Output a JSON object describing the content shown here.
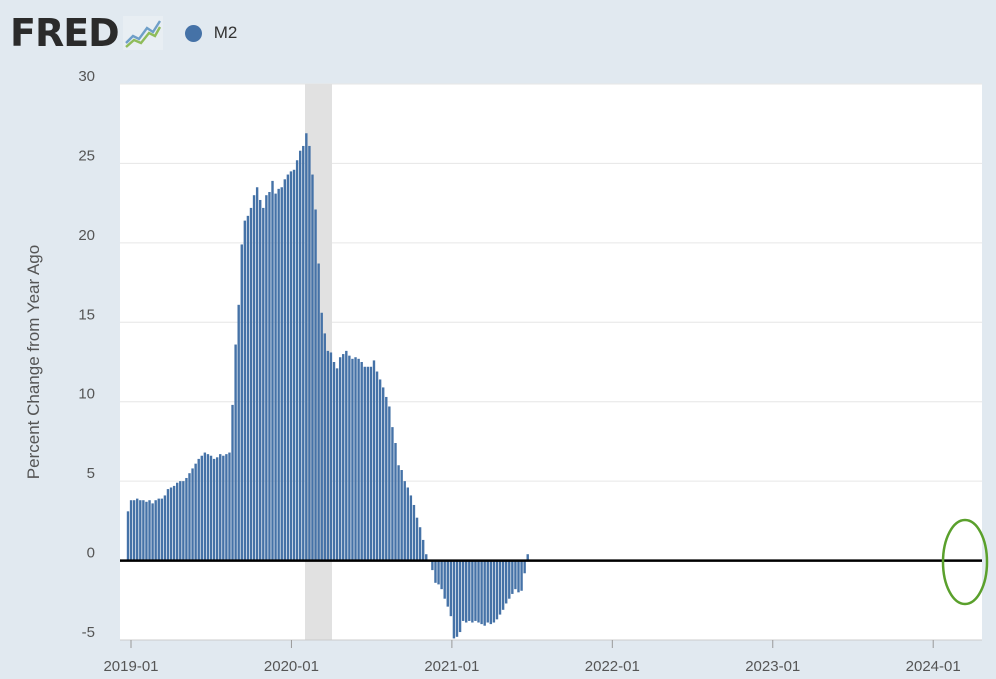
{
  "header": {
    "logo": "FRED",
    "logo_icon": "line-graph-icon"
  },
  "colors": {
    "bar": "#4572a7",
    "recession": "#e1e1e1",
    "zero_line": "#000000",
    "annotation": "#5aa02c",
    "plot_bg": "#ffffff",
    "page_bg": "#e1e9f0"
  },
  "chart_data": {
    "type": "bar",
    "ylabel": "Percent Change from Year Ago",
    "xlabel": "",
    "ylim": [
      -5,
      30
    ],
    "yticks": [
      -5,
      0,
      5,
      10,
      15,
      20,
      25,
      30
    ],
    "xticks": [
      "2019-01",
      "2020-01",
      "2021-01",
      "2022-01",
      "2023-01",
      "2024-01"
    ],
    "grid": true,
    "legend": "top-left",
    "recession": {
      "start": "2020-03",
      "end": "2020-04"
    },
    "annotation": {
      "shape": "ellipse",
      "around": "2024-02 to 2024-04"
    },
    "series": [
      {
        "name": "M2",
        "start": "2019-01",
        "frequency": "weekly",
        "values": [
          3.1,
          3.8,
          3.8,
          3.9,
          3.8,
          3.8,
          3.7,
          3.8,
          3.6,
          3.8,
          3.9,
          3.9,
          4.1,
          4.5,
          4.6,
          4.7,
          4.9,
          5.0,
          5.0,
          5.2,
          5.5,
          5.8,
          6.1,
          6.4,
          6.6,
          6.8,
          6.7,
          6.6,
          6.4,
          6.5,
          6.7,
          6.6,
          6.7,
          6.8,
          9.8,
          13.6,
          16.1,
          19.9,
          21.4,
          21.7,
          22.2,
          23.0,
          23.5,
          22.7,
          22.2,
          23.0,
          23.2,
          23.9,
          23.1,
          23.4,
          23.5,
          24.0,
          24.3,
          24.5,
          24.6,
          25.2,
          25.8,
          26.1,
          26.9,
          26.1,
          24.3,
          22.1,
          18.7,
          15.6,
          14.3,
          13.2,
          13.1,
          12.5,
          12.1,
          12.8,
          13.0,
          13.2,
          12.9,
          12.7,
          12.8,
          12.7,
          12.5,
          12.2,
          12.2,
          12.2,
          12.6,
          11.9,
          11.4,
          10.9,
          10.3,
          9.7,
          8.4,
          7.4,
          6.0,
          5.7,
          5.0,
          4.6,
          4.1,
          3.5,
          2.7,
          2.1,
          1.3,
          0.4,
          0.0,
          -0.6,
          -1.4,
          -1.5,
          -1.8,
          -2.4,
          -2.9,
          -3.5,
          -4.9,
          -4.8,
          -4.5,
          -3.8,
          -3.9,
          -3.8,
          -3.9,
          -3.8,
          -3.9,
          -4.0,
          -4.1,
          -3.9,
          -4.0,
          -3.9,
          -3.7,
          -3.4,
          -3.1,
          -2.7,
          -2.4,
          -2.1,
          -1.8,
          -2.0,
          -1.9,
          -0.8,
          0.4
        ]
      }
    ]
  }
}
